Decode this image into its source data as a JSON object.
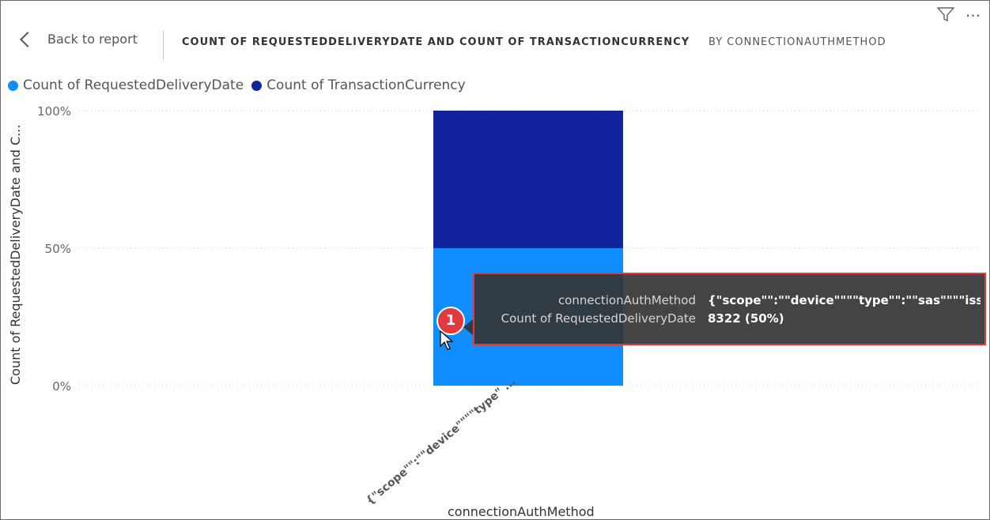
{
  "header": {
    "back_label": "Back to report",
    "title": "COUNT OF REQUESTEDDELIVERYDATE AND COUNT OF TRANSACTIONCURRENCY",
    "subtitle": "BY CONNECTIONAUTHMETHOD",
    "icons": [
      "filter-icon",
      "more-icon"
    ]
  },
  "chart_data": {
    "type": "bar",
    "stacked": "100%",
    "categories": [
      "{\"scope\"\":\"\"device\"\"\"\"type\" ..."
    ],
    "series": [
      {
        "name": "Count of RequestedDeliveryDate",
        "values": [
          50
        ],
        "color": "#118dff"
      },
      {
        "name": "Count of TransactionCurrency",
        "values": [
          50
        ],
        "color": "#12239e"
      }
    ],
    "ylabel": "Count of RequestedDeliveryDate and C...",
    "xlabel": "connectionAuthMethod",
    "yticks": [
      "0%",
      "50%",
      "100%"
    ],
    "ylim": [
      0,
      100
    ],
    "grid": true,
    "legend_position": "top-left"
  },
  "tooltip": {
    "row1_key": "connectionAuthMethod",
    "row1_val": "{\"scope\"\":\"\"device\"\"\"\"type\"\":\"\"sas\"\"\"\"issuer\"",
    "row2_key": "Count of RequestedDeliveryDate",
    "row2_val": "8322 (50%)"
  },
  "annotation": {
    "badge": "1"
  }
}
